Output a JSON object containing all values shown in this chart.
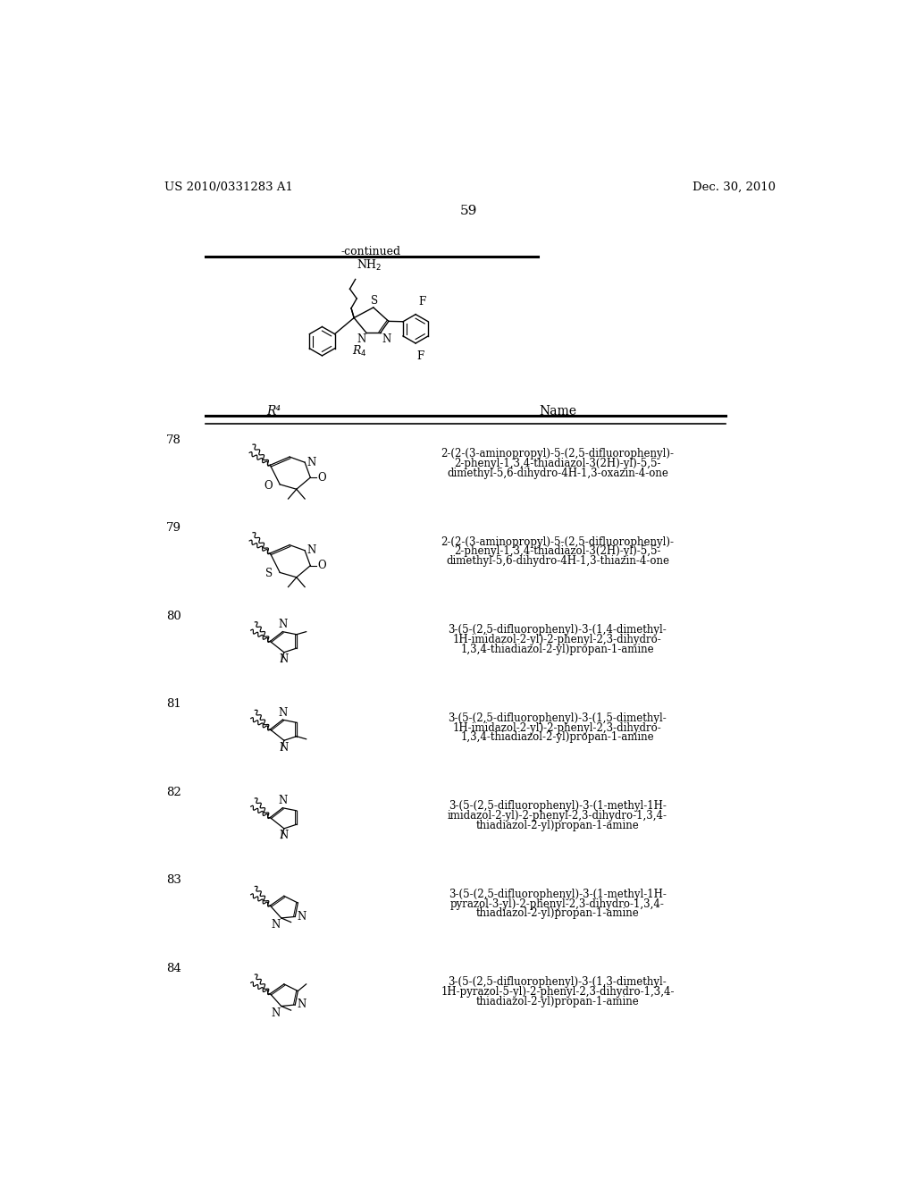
{
  "background_color": "#ffffff",
  "header_left": "US 2010/0331283 A1",
  "header_right": "Dec. 30, 2010",
  "page_number": "59",
  "continued_text": "-continued",
  "table_header_col1": "R⁴",
  "table_header_col2": "Name",
  "entries": [
    {
      "number": "78",
      "name_lines": [
        "2-(2-(3-aminopropyl)-5-(2,5-difluorophenyl)-",
        "2-phenyl-1,3,4-thiadiazol-3(2H)-yl)-5,5-",
        "dimethyl-5,6-dihydro-4H-1,3-oxazin-4-one"
      ],
      "struct_type": "oxazin"
    },
    {
      "number": "79",
      "name_lines": [
        "2-(2-(3-aminopropyl)-5-(2,5-difluorophenyl)-",
        "2-phenyl-1,3,4-thiadiazol-3(2H)-yl)-5,5-",
        "dimethyl-5,6-dihydro-4H-1,3-thiazin-4-one"
      ],
      "struct_type": "thiazin"
    },
    {
      "number": "80",
      "name_lines": [
        "3-(5-(2,5-difluorophenyl)-3-(1,4-dimethyl-",
        "1H-imidazol-2-yl)-2-phenyl-2,3-dihydro-",
        "1,3,4-thiadiazol-2-yl)propan-1-amine"
      ],
      "struct_type": "imidazol_14"
    },
    {
      "number": "81",
      "name_lines": [
        "3-(5-(2,5-difluorophenyl)-3-(1,5-dimethyl-",
        "1H-imidazol-2-yl)-2-phenyl-2,3-dihydro-",
        "1,3,4-thiadiazol-2-yl)propan-1-amine"
      ],
      "struct_type": "imidazol_15"
    },
    {
      "number": "82",
      "name_lines": [
        "3-(5-(2,5-difluorophenyl)-3-(1-methyl-1H-",
        "imidazol-2-yl)-2-phenyl-2,3-dihydro-1,3,4-",
        "thiadiazol-2-yl)propan-1-amine"
      ],
      "struct_type": "imidazol_1"
    },
    {
      "number": "83",
      "name_lines": [
        "3-(5-(2,5-difluorophenyl)-3-(1-methyl-1H-",
        "pyrazol-3-yl)-2-phenyl-2,3-dihydro-1,3,4-",
        "thiadiazol-2-yl)propan-1-amine"
      ],
      "struct_type": "pyrazol_1"
    },
    {
      "number": "84",
      "name_lines": [
        "3-(5-(2,5-difluorophenyl)-3-(1,3-dimethyl-",
        "1H-pyrazol-5-yl)-2-phenyl-2,3-dihydro-1,3,4-",
        "thiadiazol-2-yl)propan-1-amine"
      ],
      "struct_type": "pyrazol_13"
    }
  ]
}
